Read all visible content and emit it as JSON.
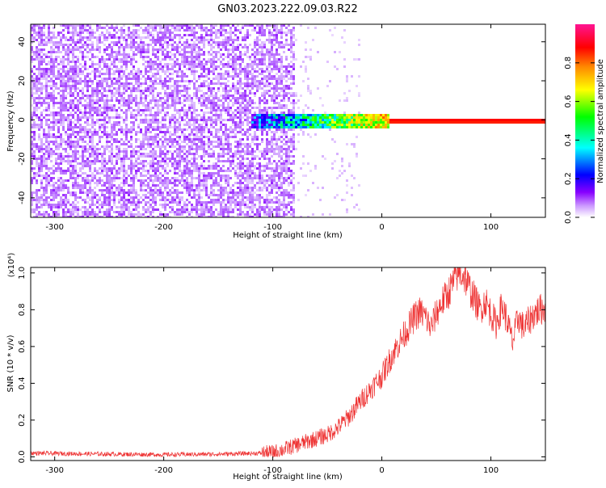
{
  "title": "GN03.2023.222.09.03.R22",
  "colors": {
    "snr_line": "#ee3333",
    "spectrum_low": "#7a2fe6",
    "axis": "#000000"
  },
  "chart_data": [
    {
      "type": "heatmap",
      "title": "GN03.2023.222.09.03.R22",
      "xlabel": "Height of straight line (km)",
      "ylabel": "Frequency (Hz)",
      "xlim": [
        -322,
        150
      ],
      "ylim": [
        -50,
        49
      ],
      "xticks": [
        -300,
        -200,
        -100,
        0,
        100
      ],
      "xtick_labels": [
        "-300",
        "-200",
        "-100",
        "0",
        "100"
      ],
      "yticks": [
        -40,
        -20,
        0,
        20,
        40
      ],
      "ytick_labels": [
        "-40",
        "-20",
        "0",
        "20",
        "40"
      ],
      "colorbar": {
        "label": "Normalized spectral amplitude",
        "range": [
          0,
          1
        ],
        "ticks": [
          0.0,
          0.2,
          0.4,
          0.6,
          0.8
        ],
        "tick_labels": [
          "0.0",
          "0.2",
          "0.4",
          "0.6",
          "0.8"
        ],
        "colormap": [
          "#ffffff",
          "#cc99ff",
          "#8800ff",
          "#0000ff",
          "#00ffff",
          "#00ff00",
          "#ffff00",
          "#ff8800",
          "#ff0000",
          "#ff1493"
        ]
      },
      "features": {
        "noise_region_x": [
          -322,
          -80
        ],
        "noise_amplitude": 0.15,
        "signal_band_frequency": 0,
        "signal_emerges_x": -120,
        "signal_strong_from_x": 5,
        "signal_band_amplitude": 0.95
      }
    },
    {
      "type": "line",
      "xlabel": "Height of straight line (km)",
      "ylabel": "SNR (10 * v/v)",
      "y_multiplier": "(x10⁴)",
      "xlim": [
        -322,
        150
      ],
      "ylim": [
        -0.02,
        1.03
      ],
      "xticks": [
        -300,
        -200,
        -100,
        0,
        100
      ],
      "xtick_labels": [
        "-300",
        "-200",
        "-100",
        "0",
        "100"
      ],
      "yticks": [
        0.0,
        0.2,
        0.4,
        0.6,
        0.8,
        1.0
      ],
      "ytick_labels": [
        "0.0",
        "0.2",
        "0.4",
        "0.6",
        "0.8",
        "1.0"
      ],
      "series": [
        {
          "x": [
            -322,
            -250,
            -200,
            -150,
            -110,
            -100,
            -90,
            -80,
            -70,
            -60,
            -50,
            -40,
            -30,
            -20,
            -10,
            0,
            10,
            20,
            30,
            35,
            40,
            45,
            50,
            55,
            60,
            65,
            70,
            75,
            80,
            85,
            90,
            95,
            100,
            105,
            110,
            115,
            120,
            125,
            130,
            135,
            140,
            145,
            150
          ],
          "values": [
            0.02,
            0.015,
            0.012,
            0.015,
            0.02,
            0.025,
            0.04,
            0.06,
            0.08,
            0.1,
            0.12,
            0.16,
            0.22,
            0.3,
            0.37,
            0.44,
            0.56,
            0.66,
            0.76,
            0.79,
            0.76,
            0.7,
            0.78,
            0.84,
            0.88,
            0.94,
            1.0,
            0.99,
            0.92,
            0.86,
            0.8,
            0.85,
            0.78,
            0.72,
            0.82,
            0.74,
            0.62,
            0.76,
            0.7,
            0.74,
            0.78,
            0.8,
            0.81
          ]
        }
      ]
    }
  ]
}
